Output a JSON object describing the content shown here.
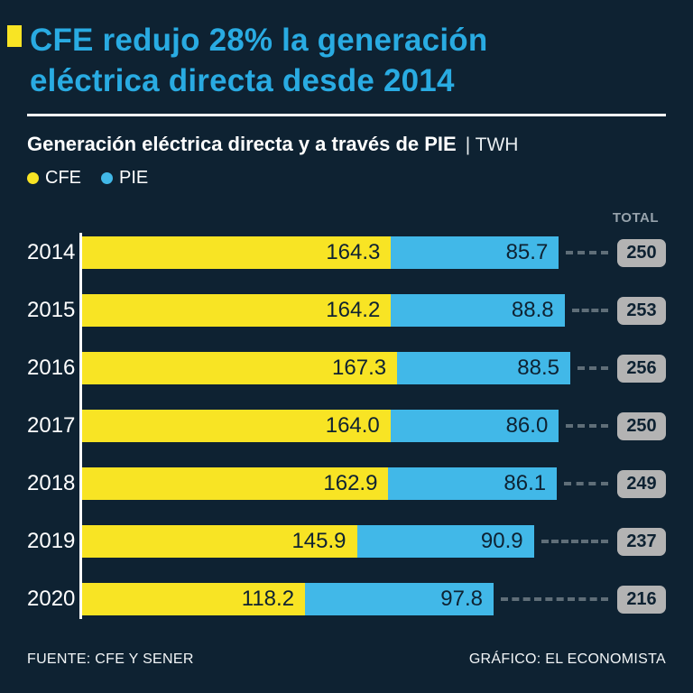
{
  "colors": {
    "background": "#0e2232",
    "title_cyan": "#29abe2",
    "cfe_yellow": "#f8e424",
    "pie_blue": "#41b8e8",
    "badge_gray": "#b3b3b3"
  },
  "title": {
    "line1": "CFE redujo 28% la generación",
    "line2": "eléctrica directa desde 2014"
  },
  "subtitle": {
    "main": "Generación eléctrica directa y a través de PIE",
    "unit": "| TWH"
  },
  "legend": [
    {
      "label": "CFE",
      "color": "#f8e424"
    },
    {
      "label": "PIE",
      "color": "#41b8e8"
    }
  ],
  "total_label": "TOTAL",
  "footer": {
    "source": "FUENTE: CFE Y SENER",
    "credit": "GRÁFICO: EL ECONOMISTA"
  },
  "chart_data": {
    "type": "bar",
    "orientation": "horizontal",
    "stacked": true,
    "title": "Generación eléctrica directa y a través de PIE",
    "unit": "TWH",
    "categories": [
      "2014",
      "2015",
      "2016",
      "2017",
      "2018",
      "2019",
      "2020"
    ],
    "series": [
      {
        "name": "CFE",
        "color": "#f8e424",
        "values": [
          164.3,
          164.2,
          167.3,
          164.0,
          162.9,
          145.9,
          118.2
        ]
      },
      {
        "name": "PIE",
        "color": "#41b8e8",
        "values": [
          85.7,
          88.8,
          88.5,
          86.0,
          86.1,
          90.9,
          97.8
        ]
      }
    ],
    "totals": [
      250,
      253,
      256,
      250,
      249,
      237,
      216
    ],
    "xlim": [
      0,
      256
    ],
    "grid": false,
    "legend_position": "top-left"
  }
}
